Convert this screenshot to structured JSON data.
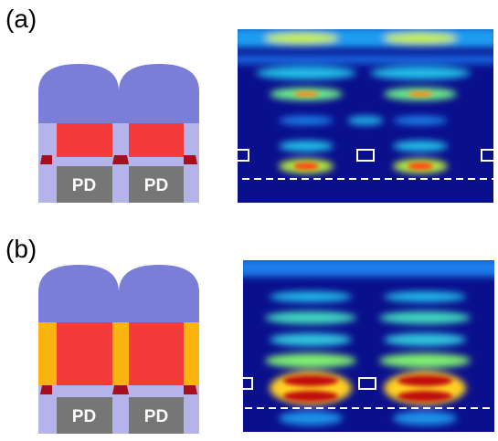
{
  "panels": [
    {
      "label": "(a)",
      "pd_labels": [
        "PD",
        "PD"
      ]
    },
    {
      "label": "(b)",
      "pd_labels": [
        "PD",
        "PD"
      ]
    }
  ]
}
